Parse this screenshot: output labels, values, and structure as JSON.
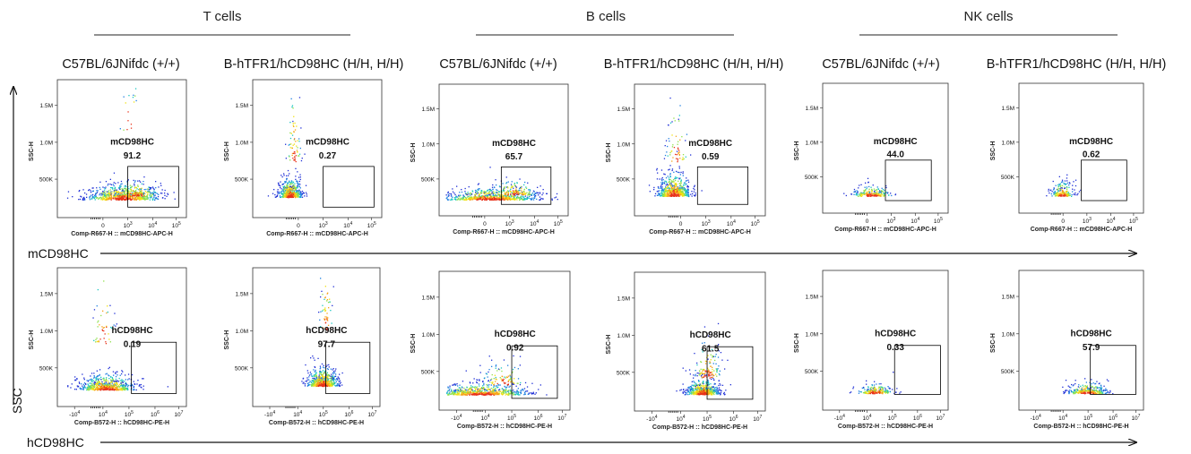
{
  "groups": [
    {
      "label": "T cells"
    },
    {
      "label": "B cells"
    },
    {
      "label": "NK cells"
    }
  ],
  "columns": [
    {
      "label": "C57BL/6JNifdc (+/+)"
    },
    {
      "label": "B-hTFR1/hCD98HC (H/H, H/H)"
    },
    {
      "label": "C57BL/6JNifdc (+/+)"
    },
    {
      "label": "B-hTFR1/hCD98HC (H/H, H/H)"
    },
    {
      "label": "C57BL/6JNifdc (+/+)"
    },
    {
      "label": "B-hTFR1/hCD98HC (H/H, H/H)"
    }
  ],
  "axes": {
    "y_overall": "SSC",
    "x_row1": "mCD98HC",
    "x_row2": "hCD98HC"
  },
  "colors": {
    "density_low": "#1f2fd6",
    "density_mid": "#19c6c0",
    "density_high": "#f0e010",
    "density_peak": "#e8321a",
    "gate": "#000000"
  },
  "chart_data": [
    {
      "type": "scatter",
      "row": 1,
      "group": "T cells",
      "strain": "C57BL/6JNifdc (+/+)",
      "gate": "mCD98HC",
      "percent": "91.2",
      "ylabel": "SSC-H",
      "xlabel": "Comp-R667-H :: mCD98HC-APC-H",
      "yticks": [
        "500K",
        "1.0M",
        "1.5M"
      ],
      "xticks": [
        "0",
        "10",
        "10",
        "10"
      ],
      "xtick_exp": [
        "",
        "3",
        "4",
        "5"
      ],
      "xscale": "biexponential"
    },
    {
      "type": "scatter",
      "row": 1,
      "group": "T cells",
      "strain": "B-hTFR1/hCD98HC (H/H, H/H)",
      "gate": "mCD98HC",
      "percent": "0.27",
      "ylabel": "SSC-H",
      "xlabel": "Comp-R667-H :: mCD98HC-APC-H",
      "yticks": [
        "500K",
        "1.0M",
        "1.5M"
      ],
      "xticks": [
        "0",
        "10",
        "10",
        "10"
      ],
      "xtick_exp": [
        "",
        "3",
        "4",
        "5"
      ],
      "xscale": "biexponential"
    },
    {
      "type": "scatter",
      "row": 1,
      "group": "B cells",
      "strain": "C57BL/6JNifdc (+/+)",
      "gate": "mCD98HC",
      "percent": "65.7",
      "ylabel": "SSC-H",
      "xlabel": "Comp-R667-H :: mCD98HC-APC-H",
      "yticks": [
        "500K",
        "1.0M",
        "1.5M"
      ],
      "xticks": [
        "0",
        "10",
        "10",
        "10"
      ],
      "xtick_exp": [
        "",
        "3",
        "4",
        "5"
      ],
      "xscale": "biexponential"
    },
    {
      "type": "scatter",
      "row": 1,
      "group": "B cells",
      "strain": "B-hTFR1/hCD98HC (H/H, H/H)",
      "gate": "mCD98HC",
      "percent": "0.59",
      "ylabel": "SSC-H",
      "xlabel": "Comp-R667-H :: mCD98HC-APC-H",
      "yticks": [
        "500K",
        "1.0M",
        "1.5M"
      ],
      "xticks": [
        "0",
        "10",
        "10",
        "10"
      ],
      "xtick_exp": [
        "",
        "3",
        "4",
        "5"
      ],
      "xscale": "biexponential"
    },
    {
      "type": "scatter",
      "row": 1,
      "group": "NK cells",
      "strain": "C57BL/6JNifdc (+/+)",
      "gate": "mCD98HC",
      "percent": "44.0",
      "ylabel": "SSC-H",
      "xlabel": "Comp-R667-H :: mCD98HC-APC-H",
      "yticks": [
        "500K",
        "1.0M",
        "1.5M"
      ],
      "xticks": [
        "0",
        "10",
        "10",
        "10"
      ],
      "xtick_exp": [
        "",
        "3",
        "4",
        "5"
      ],
      "xscale": "biexponential"
    },
    {
      "type": "scatter",
      "row": 1,
      "group": "NK cells",
      "strain": "B-hTFR1/hCD98HC (H/H, H/H)",
      "gate": "mCD98HC",
      "percent": "0.62",
      "ylabel": "SSC-H",
      "xlabel": "Comp-R667-H :: mCD98HC-APC-H",
      "yticks": [
        "500K",
        "1.0M",
        "1.5M"
      ],
      "xticks": [
        "0",
        "10",
        "10",
        "10"
      ],
      "xtick_exp": [
        "",
        "3",
        "4",
        "5"
      ],
      "xscale": "biexponential"
    },
    {
      "type": "scatter",
      "row": 2,
      "group": "T cells",
      "strain": "C57BL/6JNifdc (+/+)",
      "gate": "hCD98HC",
      "percent": "0.19",
      "ylabel": "SSC-H",
      "xlabel": "Comp-B572-H :: hCD98HC-PE-H",
      "yticks": [
        "500K",
        "1.0M",
        "1.5M"
      ],
      "xticks": [
        "-10",
        "10",
        "10",
        "10",
        "10"
      ],
      "xtick_exp": [
        "4",
        "4",
        "5",
        "6",
        "7"
      ],
      "xscale": "biexponential"
    },
    {
      "type": "scatter",
      "row": 2,
      "group": "T cells",
      "strain": "B-hTFR1/hCD98HC (H/H, H/H)",
      "gate": "hCD98HC",
      "percent": "97.7",
      "ylabel": "SSC-H",
      "xlabel": "Comp-B572-H :: hCD98HC-PE-H",
      "yticks": [
        "500K",
        "1.0M",
        "1.5M"
      ],
      "xticks": [
        "-10",
        "10",
        "10",
        "10",
        "10"
      ],
      "xtick_exp": [
        "4",
        "4",
        "5",
        "6",
        "7"
      ],
      "xscale": "biexponential"
    },
    {
      "type": "scatter",
      "row": 2,
      "group": "B cells",
      "strain": "C57BL/6JNifdc (+/+)",
      "gate": "hCD98HC",
      "percent": "0.92",
      "ylabel": "SSC-H",
      "xlabel": "Comp-B572-H :: hCD98HC-PE-H",
      "yticks": [
        "500K",
        "1.0M",
        "1.5M"
      ],
      "xticks": [
        "-10",
        "10",
        "10",
        "10",
        "10"
      ],
      "xtick_exp": [
        "4",
        "4",
        "5",
        "6",
        "7"
      ],
      "xscale": "biexponential"
    },
    {
      "type": "scatter",
      "row": 2,
      "group": "B cells",
      "strain": "B-hTFR1/hCD98HC (H/H, H/H)",
      "gate": "hCD98HC",
      "percent": "61.5",
      "ylabel": "SSC-H",
      "xlabel": "Comp-B572-H :: hCD98HC-PE-H",
      "yticks": [
        "500K",
        "1.0M",
        "1.5M"
      ],
      "xticks": [
        "-10",
        "10",
        "10",
        "10",
        "10"
      ],
      "xtick_exp": [
        "4",
        "4",
        "5",
        "6",
        "7"
      ],
      "xscale": "biexponential"
    },
    {
      "type": "scatter",
      "row": 2,
      "group": "NK cells",
      "strain": "C57BL/6JNifdc (+/+)",
      "gate": "hCD98HC",
      "percent": "0.33",
      "ylabel": "SSC-H",
      "xlabel": "Comp-B572-H :: hCD98HC-PE-H",
      "yticks": [
        "500K",
        "1.0M",
        "1.5M"
      ],
      "xticks": [
        "-10",
        "10",
        "10",
        "10",
        "10"
      ],
      "xtick_exp": [
        "4",
        "4",
        "5",
        "6",
        "7"
      ],
      "xscale": "biexponential"
    },
    {
      "type": "scatter",
      "row": 2,
      "group": "NK cells",
      "strain": "B-hTFR1/hCD98HC (H/H, H/H)",
      "gate": "hCD98HC",
      "percent": "57.9",
      "ylabel": "SSC-H",
      "xlabel": "Comp-B572-H :: hCD98HC-PE-H",
      "yticks": [
        "500K",
        "1.0M",
        "1.5M"
      ],
      "xticks": [
        "-10",
        "10",
        "10",
        "10",
        "10"
      ],
      "xtick_exp": [
        "4",
        "4",
        "5",
        "6",
        "7"
      ],
      "xscale": "biexponential"
    }
  ]
}
